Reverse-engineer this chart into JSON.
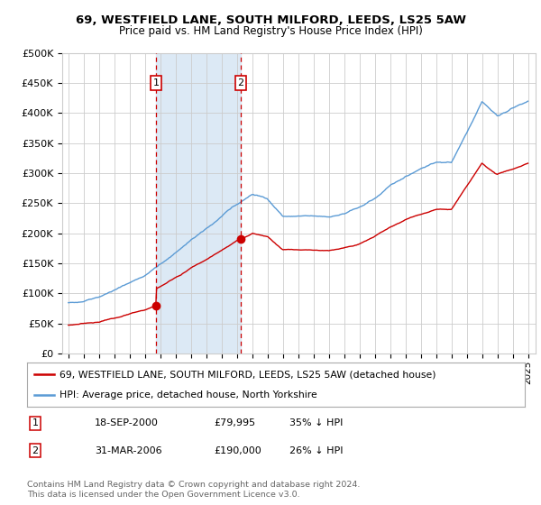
{
  "title1": "69, WESTFIELD LANE, SOUTH MILFORD, LEEDS, LS25 5AW",
  "title2": "Price paid vs. HM Land Registry's House Price Index (HPI)",
  "ylim": [
    0,
    500000
  ],
  "yticks": [
    0,
    50000,
    100000,
    150000,
    200000,
    250000,
    300000,
    350000,
    400000,
    450000,
    500000
  ],
  "ytick_labels": [
    "£0",
    "£50K",
    "£100K",
    "£150K",
    "£200K",
    "£250K",
    "£300K",
    "£350K",
    "£400K",
    "£450K",
    "£500K"
  ],
  "xlim_start": 1994.6,
  "xlim_end": 2025.5,
  "sale1_x": 2000.72,
  "sale1_y": 79995,
  "sale1_label": "1",
  "sale2_x": 2006.25,
  "sale2_y": 190000,
  "sale2_label": "2",
  "marker_box_color": "#cc0000",
  "vline_color": "#cc0000",
  "highlight_color": "#dce9f5",
  "line_red_color": "#cc0000",
  "line_blue_color": "#5b9bd5",
  "legend_label_red": "69, WESTFIELD LANE, SOUTH MILFORD, LEEDS, LS25 5AW (detached house)",
  "legend_label_blue": "HPI: Average price, detached house, North Yorkshire",
  "table_row1": [
    "1",
    "18-SEP-2000",
    "£79,995",
    "35% ↓ HPI"
  ],
  "table_row2": [
    "2",
    "31-MAR-2006",
    "£190,000",
    "26% ↓ HPI"
  ],
  "footer": "Contains HM Land Registry data © Crown copyright and database right 2024.\nThis data is licensed under the Open Government Licence v3.0.",
  "background_color": "#ffffff",
  "grid_color": "#cccccc",
  "xticks": [
    1995,
    1996,
    1997,
    1998,
    1999,
    2000,
    2001,
    2002,
    2003,
    2004,
    2005,
    2006,
    2007,
    2008,
    2009,
    2010,
    2011,
    2012,
    2013,
    2014,
    2015,
    2016,
    2017,
    2018,
    2019,
    2020,
    2021,
    2022,
    2023,
    2024,
    2025
  ]
}
